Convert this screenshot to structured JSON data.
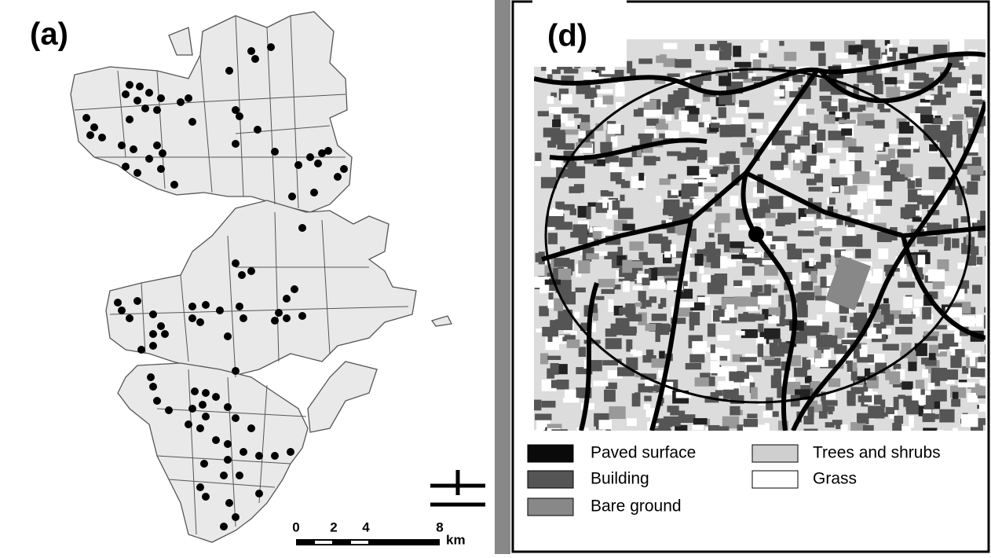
{
  "panels": [
    {
      "label": "(a)",
      "scale_bar": {
        "ticks": [
          "0",
          "2",
          "4",
          "8"
        ],
        "unit": "km"
      }
    },
    {
      "label": "(d)",
      "legend": [
        "Paved surface",
        "Building",
        "Bare ground",
        "Trees and shrubs",
        "Grass"
      ]
    }
  ]
}
